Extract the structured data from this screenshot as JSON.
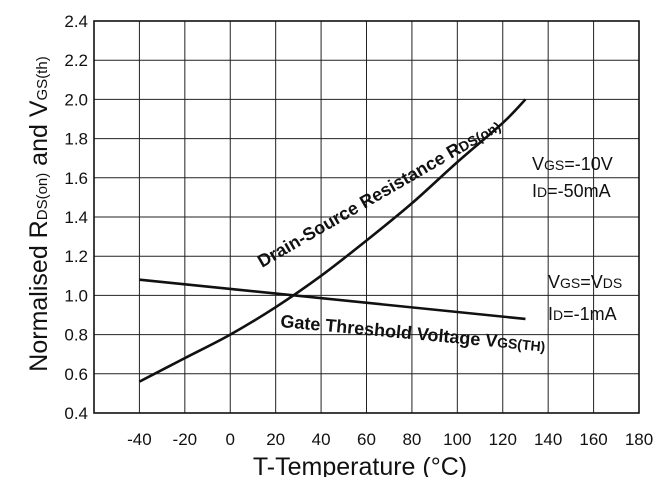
{
  "chart_data": {
    "type": "line",
    "xlabel": "T-Temperature (°C)",
    "ylabel": {
      "main": "Normalised R",
      "sub1": "DS(on)",
      "mid": " and V",
      "sub2": "GS(th)"
    },
    "xlim": [
      -60,
      180
    ],
    "ylim": [
      0.4,
      2.4
    ],
    "xticks": [
      "-40",
      "-20",
      "0",
      "20",
      "40",
      "60",
      "80",
      "100",
      "120",
      "140",
      "160",
      "180"
    ],
    "yticks": [
      "0.4",
      "0.6",
      "0.8",
      "1.0",
      "1.2",
      "1.4",
      "1.6",
      "1.8",
      "2.0",
      "2.2",
      "2.4"
    ],
    "grid": true,
    "series": [
      {
        "name": "Drain-Source Resistance RDS(on)",
        "label": {
          "main": "Drain-Source Resistance R",
          "sub": "DS(on)"
        },
        "x": [
          -40,
          -20,
          0,
          20,
          40,
          60,
          80,
          100,
          120,
          130
        ],
        "y": [
          0.56,
          0.68,
          0.8,
          0.94,
          1.1,
          1.28,
          1.47,
          1.68,
          1.88,
          2.0
        ]
      },
      {
        "name": "Gate Threshold Voltage VGS(TH)",
        "label": {
          "main": "Gate Threshold Voltage V",
          "sub": "GS(TH)"
        },
        "x": [
          -40,
          130
        ],
        "y": [
          1.08,
          0.88
        ]
      }
    ],
    "annotations": [
      {
        "line1": {
          "a": "V",
          "b": "GS",
          "c": "=-10V"
        },
        "line2": {
          "a": "I",
          "b": "D",
          "c": "=-50mA"
        }
      },
      {
        "line1": {
          "a": "V",
          "b": "GS",
          "c": "=V",
          "d": "DS"
        },
        "line2": {
          "a": "I",
          "b": "D",
          "c": "=-1mA"
        }
      }
    ]
  }
}
